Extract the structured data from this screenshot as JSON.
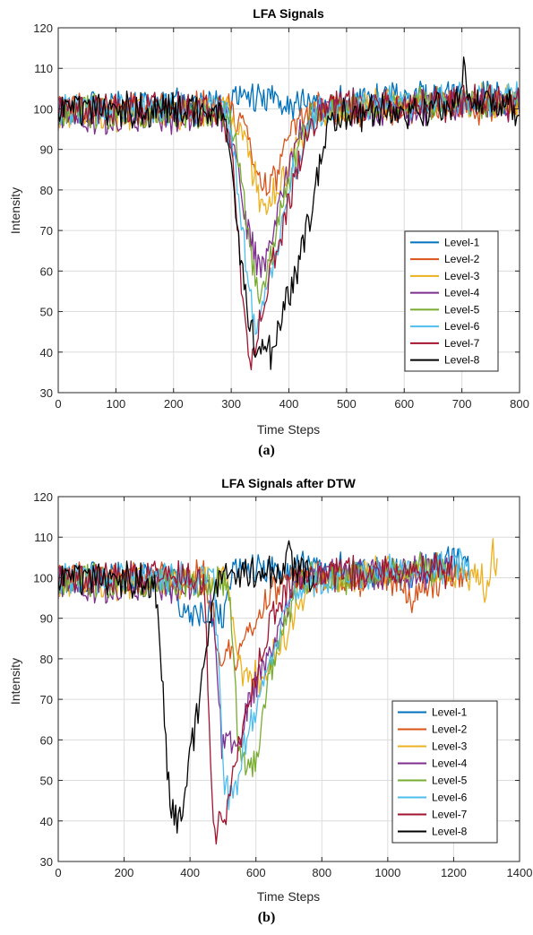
{
  "captions": [
    "(a)",
    "(b)"
  ],
  "colors": {
    "Level-1": "#0072BD",
    "Level-2": "#D95319",
    "Level-3": "#EDB120",
    "Level-4": "#7E2F8E",
    "Level-5": "#77AC30",
    "Level-6": "#4DBEEE",
    "Level-7": "#A2142F",
    "Level-8": "#000000"
  },
  "chart_data": [
    {
      "type": "line",
      "title": "LFA Signals",
      "xlabel": "Time Steps",
      "ylabel": "Intensity",
      "xlim": [
        0,
        800
      ],
      "ylim": [
        30,
        120
      ],
      "xticks": [
        0,
        100,
        200,
        300,
        400,
        500,
        600,
        700,
        800
      ],
      "yticks": [
        30,
        40,
        50,
        60,
        70,
        80,
        90,
        100,
        110,
        120
      ],
      "grid": true,
      "legend_position": "bottom-right",
      "series": [
        {
          "name": "Level-1",
          "points": [
            [
              0,
              101
            ],
            [
              300,
              101
            ],
            [
              320,
              102
            ],
            [
              380,
              103
            ],
            [
              420,
              101
            ],
            [
              500,
              102
            ],
            [
              600,
              103
            ],
            [
              700,
              102
            ],
            [
              800,
              103
            ]
          ]
        },
        {
          "name": "Level-2",
          "points": [
            [
              0,
              100
            ],
            [
              300,
              100
            ],
            [
              320,
              95
            ],
            [
              335,
              89
            ],
            [
              345,
              84
            ],
            [
              360,
              80
            ],
            [
              375,
              83
            ],
            [
              395,
              92
            ],
            [
              420,
              98
            ],
            [
              450,
              100
            ],
            [
              800,
              101
            ]
          ]
        },
        {
          "name": "Level-3",
          "points": [
            [
              0,
              99
            ],
            [
              300,
              99
            ],
            [
              320,
              94
            ],
            [
              335,
              86
            ],
            [
              350,
              78
            ],
            [
              360,
              76
            ],
            [
              380,
              80
            ],
            [
              410,
              90
            ],
            [
              440,
              97
            ],
            [
              480,
              100
            ],
            [
              800,
              102
            ]
          ]
        },
        {
          "name": "Level-4",
          "points": [
            [
              0,
              98
            ],
            [
              290,
              98
            ],
            [
              310,
              88
            ],
            [
              325,
              72
            ],
            [
              340,
              64
            ],
            [
              350,
              59
            ],
            [
              365,
              65
            ],
            [
              385,
              78
            ],
            [
              405,
              88
            ],
            [
              425,
              96
            ],
            [
              450,
              100
            ],
            [
              800,
              101
            ]
          ]
        },
        {
          "name": "Level-5",
          "points": [
            [
              0,
              99
            ],
            [
              295,
              99
            ],
            [
              310,
              90
            ],
            [
              325,
              75
            ],
            [
              340,
              60
            ],
            [
              350,
              55
            ],
            [
              365,
              60
            ],
            [
              385,
              75
            ],
            [
              410,
              88
            ],
            [
              435,
              97
            ],
            [
              460,
              100
            ],
            [
              800,
              102
            ]
          ]
        },
        {
          "name": "Level-6",
          "points": [
            [
              0,
              100
            ],
            [
              290,
              100
            ],
            [
              305,
              88
            ],
            [
              320,
              68
            ],
            [
              335,
              52
            ],
            [
              345,
              47
            ],
            [
              358,
              55
            ],
            [
              380,
              68
            ],
            [
              405,
              82
            ],
            [
              430,
              95
            ],
            [
              460,
              100
            ],
            [
              800,
              103
            ]
          ]
        },
        {
          "name": "Level-7",
          "points": [
            [
              0,
              100
            ],
            [
              285,
              100
            ],
            [
              300,
              90
            ],
            [
              310,
              72
            ],
            [
              320,
              53
            ],
            [
              330,
              40
            ],
            [
              335,
              38
            ],
            [
              345,
              45
            ],
            [
              360,
              55
            ],
            [
              380,
              66
            ],
            [
              405,
              80
            ],
            [
              430,
              93
            ],
            [
              460,
              100
            ],
            [
              800,
              102
            ]
          ]
        },
        {
          "name": "Level-8",
          "points": [
            [
              0,
              100
            ],
            [
              285,
              99
            ],
            [
              295,
              92
            ],
            [
              305,
              80
            ],
            [
              315,
              65
            ],
            [
              325,
              53
            ],
            [
              335,
              45
            ],
            [
              345,
              40
            ],
            [
              355,
              42
            ],
            [
              370,
              39
            ],
            [
              380,
              45
            ],
            [
              395,
              53
            ],
            [
              415,
              60
            ],
            [
              430,
              70
            ],
            [
              450,
              84
            ],
            [
              470,
              95
            ],
            [
              490,
              99
            ],
            [
              680,
              100
            ],
            [
              700,
              104
            ],
            [
              705,
              115
            ],
            [
              710,
              102
            ],
            [
              800,
              100
            ]
          ]
        }
      ]
    },
    {
      "type": "line",
      "title": "LFA Signals after DTW",
      "xlabel": "Time Steps",
      "ylabel": "Intensity",
      "xlim": [
        0,
        1400
      ],
      "ylim": [
        30,
        120
      ],
      "xticks": [
        0,
        200,
        400,
        600,
        800,
        1000,
        1200,
        1400
      ],
      "yticks": [
        30,
        40,
        50,
        60,
        70,
        80,
        90,
        100,
        110,
        120
      ],
      "grid": true,
      "legend_position": "bottom-right",
      "series": [
        {
          "name": "Level-1",
          "points": [
            [
              0,
              101
            ],
            [
              355,
              100
            ],
            [
              370,
              91
            ],
            [
              500,
              91
            ],
            [
              520,
              100
            ],
            [
              600,
              102
            ],
            [
              800,
              103
            ],
            [
              1000,
              101
            ],
            [
              1250,
              104
            ]
          ]
        },
        {
          "name": "Level-2",
          "points": [
            [
              0,
              100
            ],
            [
              440,
              100
            ],
            [
              470,
              92
            ],
            [
              480,
              81
            ],
            [
              560,
              81
            ],
            [
              580,
              86
            ],
            [
              620,
              92
            ],
            [
              660,
              98
            ],
            [
              700,
              100
            ],
            [
              1040,
              100
            ],
            [
              1060,
              95
            ],
            [
              1200,
              100
            ],
            [
              1250,
              101
            ]
          ]
        },
        {
          "name": "Level-3",
          "points": [
            [
              0,
              99
            ],
            [
              500,
              99
            ],
            [
              525,
              93
            ],
            [
              545,
              83
            ],
            [
              560,
              75
            ],
            [
              620,
              75
            ],
            [
              650,
              80
            ],
            [
              690,
              86
            ],
            [
              730,
              93
            ],
            [
              770,
              99
            ],
            [
              800,
              100
            ],
            [
              1000,
              101
            ],
            [
              1200,
              101
            ],
            [
              1280,
              100
            ],
            [
              1300,
              95
            ],
            [
              1320,
              108
            ],
            [
              1335,
              101
            ]
          ]
        },
        {
          "name": "Level-4",
          "points": [
            [
              0,
              98
            ],
            [
              460,
              98
            ],
            [
              480,
              80
            ],
            [
              495,
              59
            ],
            [
              550,
              59
            ],
            [
              570,
              67
            ],
            [
              610,
              75
            ],
            [
              650,
              83
            ],
            [
              690,
              92
            ],
            [
              720,
              98
            ],
            [
              760,
              101
            ],
            [
              1200,
              102
            ]
          ]
        },
        {
          "name": "Level-5",
          "points": [
            [
              0,
              99
            ],
            [
              515,
              99
            ],
            [
              530,
              85
            ],
            [
              545,
              60
            ],
            [
              555,
              55
            ],
            [
              600,
              55
            ],
            [
              620,
              67
            ],
            [
              650,
              78
            ],
            [
              690,
              90
            ],
            [
              720,
              97
            ],
            [
              760,
              100
            ],
            [
              1200,
              102
            ]
          ]
        },
        {
          "name": "Level-6",
          "points": [
            [
              0,
              100
            ],
            [
              470,
              100
            ],
            [
              485,
              82
            ],
            [
              500,
              52
            ],
            [
              510,
              47
            ],
            [
              540,
              47
            ],
            [
              570,
              60
            ],
            [
              610,
              72
            ],
            [
              650,
              83
            ],
            [
              690,
              93
            ],
            [
              730,
              99
            ],
            [
              1250,
              103
            ]
          ]
        },
        {
          "name": "Level-7",
          "points": [
            [
              0,
              100
            ],
            [
              440,
              100
            ],
            [
              452,
              80
            ],
            [
              462,
              55
            ],
            [
              472,
              40
            ],
            [
              480,
              38
            ],
            [
              500,
              41
            ],
            [
              520,
              46
            ],
            [
              545,
              57
            ],
            [
              570,
              67
            ],
            [
              600,
              77
            ],
            [
              640,
              88
            ],
            [
              680,
              96
            ],
            [
              720,
              100
            ],
            [
              1200,
              102
            ]
          ]
        },
        {
          "name": "Level-8",
          "points": [
            [
              0,
              100
            ],
            [
              290,
              99
            ],
            [
              300,
              92
            ],
            [
              315,
              75
            ],
            [
              325,
              60
            ],
            [
              335,
              48
            ],
            [
              345,
              40
            ],
            [
              355,
              42
            ],
            [
              368,
              39
            ],
            [
              380,
              45
            ],
            [
              395,
              53
            ],
            [
              410,
              60
            ],
            [
              425,
              68
            ],
            [
              445,
              80
            ],
            [
              460,
              90
            ],
            [
              480,
              98
            ],
            [
              500,
              101
            ],
            [
              680,
              101
            ],
            [
              695,
              104
            ],
            [
              702,
              115
            ],
            [
              710,
              102
            ],
            [
              780,
              101
            ]
          ]
        }
      ]
    }
  ]
}
